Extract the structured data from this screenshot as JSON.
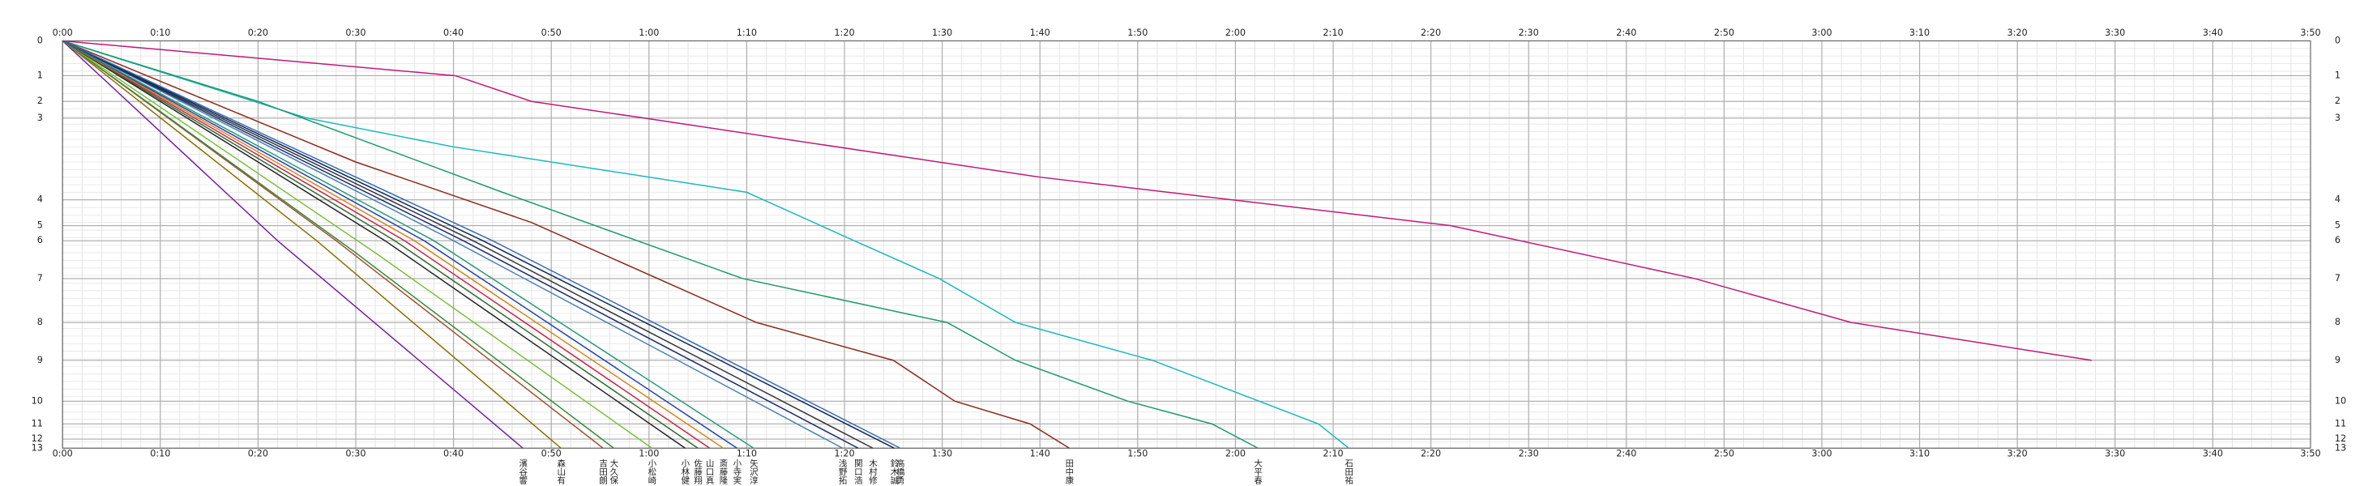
{
  "chart_data": {
    "type": "line",
    "xlim": [
      0,
      230
    ],
    "ylim": [
      0,
      269
    ],
    "grid": true,
    "xticks": [
      {
        "value": 0,
        "label": "0:00"
      },
      {
        "value": 10,
        "label": "0:10"
      },
      {
        "value": 20,
        "label": "0:20"
      },
      {
        "value": 30,
        "label": "0:30"
      },
      {
        "value": 40,
        "label": "0:40"
      },
      {
        "value": 50,
        "label": "0:50"
      },
      {
        "value": 60,
        "label": "1:00"
      },
      {
        "value": 70,
        "label": "1:10"
      },
      {
        "value": 80,
        "label": "1:20"
      },
      {
        "value": 90,
        "label": "1:30"
      },
      {
        "value": 100,
        "label": "1:40"
      },
      {
        "value": 110,
        "label": "1:50"
      },
      {
        "value": 120,
        "label": "2:00"
      },
      {
        "value": 130,
        "label": "2:10"
      },
      {
        "value": 140,
        "label": "2:20"
      },
      {
        "value": 150,
        "label": "2:30"
      },
      {
        "value": 160,
        "label": "2:40"
      },
      {
        "value": 170,
        "label": "2:50"
      },
      {
        "value": 180,
        "label": "3:00"
      },
      {
        "value": 190,
        "label": "3:10"
      },
      {
        "value": 200,
        "label": "3:20"
      },
      {
        "value": 210,
        "label": "3:30"
      },
      {
        "value": 220,
        "label": "3:40"
      },
      {
        "value": 230,
        "label": "3:50"
      }
    ],
    "yticks": [
      0,
      {
        "value": 23,
        "label": "1"
      },
      {
        "value": 40,
        "label": "2"
      },
      {
        "value": 51,
        "label": "3"
      },
      {
        "value": 105,
        "label": "4"
      },
      {
        "value": 122,
        "label": "5"
      },
      {
        "value": 132,
        "label": "6"
      },
      {
        "value": 157,
        "label": "7"
      },
      {
        "value": 186,
        "label": "8"
      },
      {
        "value": 211,
        "label": "9"
      },
      {
        "value": 238,
        "label": "10"
      },
      {
        "value": 253,
        "label": "11"
      },
      {
        "value": 263,
        "label": "12"
      },
      {
        "value": 269,
        "label": "13"
      }
    ],
    "series": [
      {
        "color": "#c0187a",
        "x": [
          0,
          40.2,
          48,
          59.5,
          100,
          142,
          167,
          183,
          207.6
        ],
        "values": [
          0,
          23,
          40,
          51,
          90,
          122,
          157,
          186,
          211
        ]
      },
      {
        "name": "石田祐",
        "color": "#1ab8c0",
        "x": [
          0,
          25,
          40,
          70,
          81,
          89.7,
          97.5,
          111.5,
          128.5,
          131.6
        ],
        "values": [
          0,
          51,
          70,
          100,
          132,
          157,
          186,
          211,
          253,
          269
        ]
      },
      {
        "name": "大平春",
        "color": "#1a9a6a",
        "x": [
          0,
          20,
          45,
          69.6,
          90.5,
          97.5,
          109,
          117.6,
          122.3
        ],
        "values": [
          0,
          40,
          100,
          157,
          186,
          211,
          238,
          253,
          269
        ]
      },
      {
        "name": "田中康",
        "color": "#8b2a1a",
        "x": [
          0,
          30,
          48,
          71,
          85,
          91.3,
          99,
          103
        ],
        "values": [
          0,
          80,
          120,
          186,
          211,
          238,
          253,
          269
        ]
      },
      {
        "name": "濱谷響",
        "color": "#7a1fa2",
        "x": [
          0,
          22,
          47.1
        ],
        "values": [
          0,
          132,
          269
        ]
      },
      {
        "name": "森山有",
        "color": "#8b6f00",
        "x": [
          0,
          26,
          51
        ],
        "values": [
          0,
          132,
          269
        ]
      },
      {
        "name": "吉田朗",
        "color": "#a0522d",
        "x": [
          0,
          28,
          55.3
        ],
        "values": [
          0,
          132,
          269
        ]
      },
      {
        "name": "大久保",
        "color": "#3a8a3a",
        "x": [
          0,
          30,
          56.4
        ],
        "values": [
          0,
          140,
          269
        ]
      },
      {
        "name": "小松崎",
        "color": "#7cbf3a",
        "x": [
          0,
          32,
          60.3
        ],
        "values": [
          0,
          140,
          269
        ]
      },
      {
        "name": "小林健",
        "color": "#222222",
        "x": [
          0,
          33,
          63.7
        ],
        "values": [
          0,
          132,
          269
        ]
      },
      {
        "name": "佐藤翔",
        "color": "#2e6b2e",
        "x": [
          0,
          34,
          65
        ],
        "values": [
          0,
          132,
          269
        ]
      },
      {
        "name": "山口真",
        "color": "#cc2244",
        "x": [
          0,
          35,
          66.2
        ],
        "values": [
          0,
          132,
          269
        ]
      },
      {
        "name": "斎藤隆",
        "color": "#d4851a",
        "x": [
          0,
          36,
          67.6
        ],
        "values": [
          0,
          132,
          269
        ]
      },
      {
        "name": "小寺実",
        "color": "#2244aa",
        "x": [
          0,
          37,
          69
        ],
        "values": [
          0,
          132,
          269
        ]
      },
      {
        "name": "矢沢淳",
        "color": "#2a9a7a",
        "x": [
          0,
          38,
          70.7
        ],
        "values": [
          0,
          132,
          269
        ]
      },
      {
        "name": "浅野拓",
        "color": "#4682b4",
        "x": [
          0,
          40,
          79.8
        ],
        "values": [
          0,
          132,
          269
        ]
      },
      {
        "name": "関口浩",
        "color": "#1a2a6a",
        "x": [
          0,
          41,
          81.4
        ],
        "values": [
          0,
          132,
          269
        ]
      },
      {
        "name": "木村修",
        "color": "#333333",
        "x": [
          0,
          42,
          82.9
        ],
        "values": [
          0,
          132,
          269
        ]
      },
      {
        "name": "鈴木誠",
        "color": "#0a2a5a",
        "x": [
          0,
          43,
          85.1
        ],
        "values": [
          0,
          132,
          269
        ]
      },
      {
        "name": "高橋勇",
        "color": "#3a6ab0",
        "x": [
          0,
          44,
          85.7
        ],
        "values": [
          0,
          132,
          269
        ]
      }
    ]
  }
}
